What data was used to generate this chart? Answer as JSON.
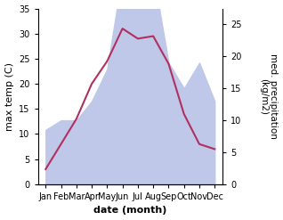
{
  "months": [
    "Jan",
    "Feb",
    "Mar",
    "Apr",
    "May",
    "Jun",
    "Jul",
    "Aug",
    "Sep",
    "Oct",
    "Nov",
    "Dec"
  ],
  "temperature": [
    3,
    8,
    13,
    20,
    24.5,
    31,
    29,
    29.5,
    24,
    14,
    8,
    7
  ],
  "precipitation": [
    8.5,
    10,
    10,
    13,
    18,
    33,
    31,
    33,
    19,
    15,
    19,
    13
  ],
  "temp_color": "#b03060",
  "precip_fill_color": "#bfc8e8",
  "xlabel": "date (month)",
  "ylabel_left": "max temp (C)",
  "ylabel_right": "med. precipitation\n(kg/m2)",
  "ylim_left": [
    0,
    35
  ],
  "ylim_right": [
    0,
    27.5
  ],
  "yticks_left": [
    0,
    5,
    10,
    15,
    20,
    25,
    30,
    35
  ],
  "yticks_right": [
    0,
    5,
    10,
    15,
    20,
    25
  ],
  "background_color": "#ffffff"
}
